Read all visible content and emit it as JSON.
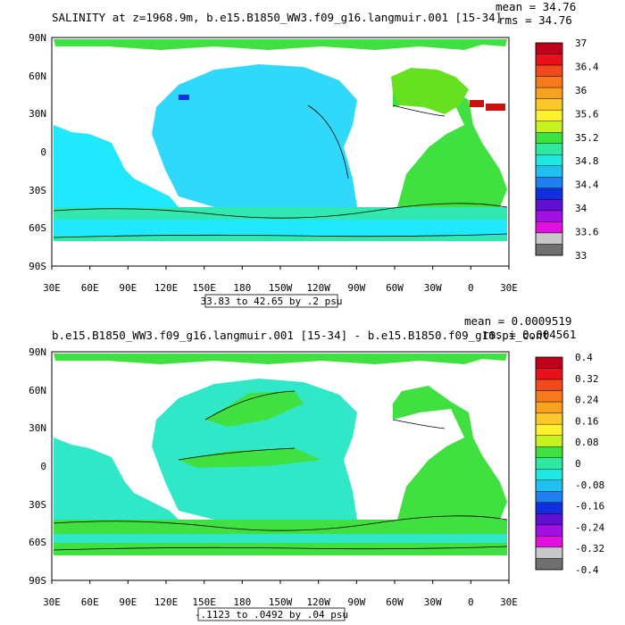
{
  "panels": [
    {
      "title": "SALINITY at z=1968.9m, b.e15.B1850_WW3.f09_g16.langmuir.001 [15-34]",
      "mean": "mean = 34.76",
      "rms": "rms = 34.76",
      "range_label": "33.83 to 42.65 by .2 psu",
      "colorbar": {
        "labels": [
          "37",
          "36.4",
          "36",
          "35.6",
          "35.2",
          "34.8",
          "34.4",
          "34",
          "33.6",
          "33"
        ],
        "colors": [
          "#c0001a",
          "#e8101a",
          "#f04a1c",
          "#f57a1e",
          "#f8a21e",
          "#fbc82a",
          "#fff030",
          "#c8f020",
          "#40e040",
          "#30e8a0",
          "#20e8e0",
          "#20c0f0",
          "#2080f0",
          "#1030e0",
          "#6010d0",
          "#a010e0",
          "#e010e0",
          "#c8c8c8",
          "#707070"
        ],
        "type": "discrete"
      },
      "fields": {
        "ocean": "#1fe8ff",
        "pacific": "#30d8fa",
        "atlantic": "#40e040",
        "north_atlantic": "#66e020",
        "southern": "#30e8b0",
        "mediterranean": "#c8120e"
      }
    },
    {
      "title": "b.e15.B1850_WW3.f09_g16.langmuir.001 [15-34] - b.e15.B1850.f09_g16.pi_cont",
      "mean": "mean = 0.0009519",
      "rms": "rms = 0.004561",
      "range_label": "-.1123 to .0492 by .04 psu",
      "colorbar": {
        "labels": [
          "0.4",
          "0.32",
          "0.24",
          "0.16",
          "0.08",
          "0",
          "-0.08",
          "-0.16",
          "-0.24",
          "-0.32",
          "-0.4"
        ],
        "colors": [
          "#c0001a",
          "#e8101a",
          "#f04a1c",
          "#f57a1e",
          "#f8a21e",
          "#fbc82a",
          "#fff030",
          "#c8f020",
          "#40e040",
          "#30e8a0",
          "#20e8e0",
          "#20c0f0",
          "#2080f0",
          "#1030e0",
          "#6010d0",
          "#a010e0",
          "#e010e0",
          "#c8c8c8",
          "#707070"
        ],
        "type": "discrete"
      },
      "fields": {
        "ocean": "#30e8c8",
        "pacific": "#30e8c8",
        "atlantic": "#40e040",
        "north_atlantic": "#40e040",
        "southern": "#40e040",
        "mediterranean": "#2080f0"
      }
    }
  ],
  "axes": {
    "y_labels": [
      "90N",
      "60N",
      "30N",
      "0",
      "30S",
      "60S",
      "90S"
    ],
    "x_labels": [
      "30E",
      "60E",
      "90E",
      "120E",
      "150E",
      "180",
      "150W",
      "120W",
      "90W",
      "60W",
      "30W",
      "0",
      "30E"
    ]
  }
}
